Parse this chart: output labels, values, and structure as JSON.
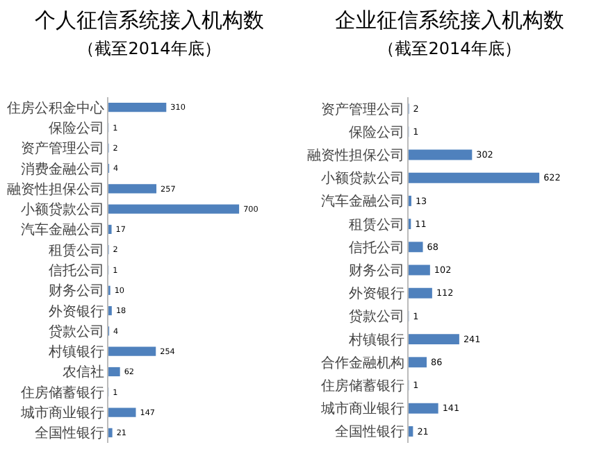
{
  "chart_data": [
    {
      "type": "bar",
      "orientation": "horizontal",
      "title": "个人征信系统接入机构数",
      "subtitle": "（截至2014年底）",
      "categories": [
        "住房公积金中心",
        "保险公司",
        "资产管理公司",
        "消费金融公司",
        "融资性担保公司",
        "小额贷款公司",
        "汽车金融公司",
        "租赁公司",
        "信托公司",
        "财务公司",
        "外资银行",
        "贷款公司",
        "村镇银行",
        "农信社",
        "住房储蓄银行",
        "城市商业银行",
        "全国性银行"
      ],
      "values": [
        310,
        1,
        2,
        4,
        257,
        700,
        17,
        2,
        1,
        10,
        18,
        4,
        254,
        62,
        1,
        147,
        21
      ],
      "color": "#4f81bd",
      "data_labels": true,
      "tick_labels": "y",
      "grid": false,
      "legend": false
    },
    {
      "type": "bar",
      "orientation": "horizontal",
      "title": "企业征信系统接入机构数",
      "subtitle": "（截至2014年底）",
      "categories": [
        "资产管理公司",
        "保险公司",
        "融资性担保公司",
        "小额贷款公司",
        "汽车金融公司",
        "租赁公司",
        "信托公司",
        "财务公司",
        "外资银行",
        "贷款公司",
        "村镇银行",
        "合作金融机构",
        "住房储蓄银行",
        "城市商业银行",
        "全国性银行"
      ],
      "values": [
        2,
        1,
        302,
        622,
        13,
        11,
        68,
        102,
        112,
        1,
        241,
        86,
        1,
        141,
        21
      ],
      "color": "#4f81bd",
      "data_labels": true,
      "tick_labels": "y",
      "grid": false,
      "legend": false
    }
  ]
}
